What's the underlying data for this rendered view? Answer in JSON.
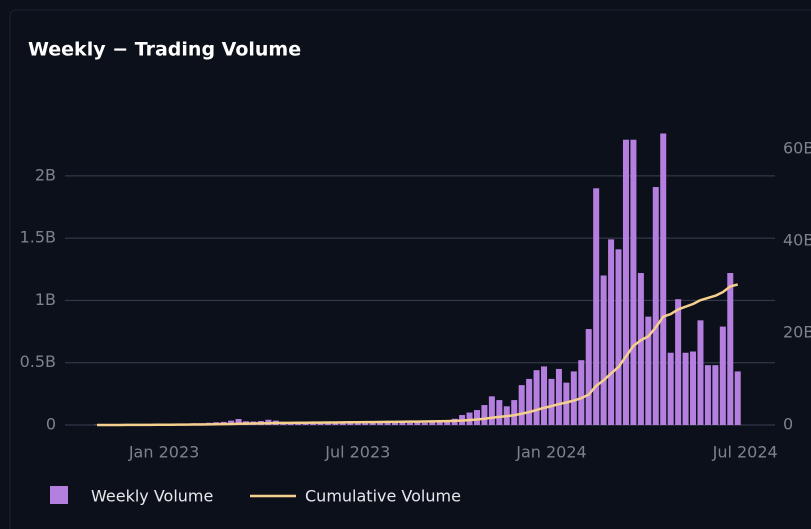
{
  "chart_data": {
    "type": "bar_line",
    "title": "Weekly − Trading Volume",
    "categories": [
      null,
      null,
      null,
      null,
      null,
      null,
      null,
      null,
      null,
      "Jan 2023",
      null,
      null,
      null,
      null,
      null,
      null,
      null,
      null,
      null,
      null,
      null,
      null,
      null,
      null,
      null,
      null,
      null,
      null,
      null,
      null,
      null,
      null,
      null,
      null,
      null,
      "Jul 2023",
      null,
      null,
      null,
      null,
      null,
      null,
      null,
      null,
      null,
      null,
      null,
      null,
      null,
      null,
      null,
      null,
      null,
      null,
      null,
      null,
      null,
      null,
      null,
      null,
      null,
      "Jan 2024",
      null,
      null,
      null,
      null,
      null,
      null,
      null,
      null,
      null,
      null,
      null,
      null,
      null,
      null,
      null,
      null,
      null,
      null,
      null,
      null,
      null,
      null,
      null,
      null,
      null,
      "Jul 2024"
    ],
    "series": [
      {
        "name": "Weekly Volume",
        "color": "#b57fe0",
        "kind": "bar",
        "values": [
          3000000,
          3000000,
          3000000,
          4000000,
          5000000,
          5000000,
          6000000,
          6000000,
          8000000,
          8000000,
          10000000,
          12000000,
          12000000,
          14000000,
          14000000,
          18000000,
          22000000,
          25000000,
          35000000,
          48000000,
          30000000,
          28000000,
          32000000,
          42000000,
          35000000,
          22000000,
          18000000,
          16000000,
          15000000,
          14000000,
          15000000,
          14000000,
          15000000,
          16000000,
          15000000,
          16000000,
          15000000,
          16000000,
          18000000,
          17000000,
          18000000,
          17000000,
          18000000,
          20000000,
          18000000,
          22000000,
          25000000,
          28000000,
          50000000,
          80000000,
          100000000,
          120000000,
          160000000,
          230000000,
          200000000,
          150000000,
          200000000,
          320000000,
          370000000,
          440000000,
          470000000,
          370000000,
          450000000,
          340000000,
          430000000,
          520000000,
          770000000,
          1900000000,
          1200000000,
          1490000000,
          1410000000,
          2290000000,
          2290000000,
          1220000000,
          870000000,
          1910000000,
          2340000000,
          580000000,
          1010000000,
          580000000,
          590000000,
          840000000,
          480000000,
          480000000,
          790000000,
          1220000000,
          430000000,
          null
        ]
      },
      {
        "name": "Cumulative Volume",
        "color": "#f5cf8e",
        "kind": "line",
        "axis": "y2",
        "values": [
          3000000,
          6000000,
          9000000,
          13000000,
          18000000,
          23000000,
          29000000,
          35000000,
          43000000,
          51000000,
          61000000,
          73000000,
          85000000,
          99000000,
          113000000,
          131000000,
          153000000,
          178000000,
          213000000,
          261000000,
          291000000,
          319000000,
          351000000,
          393000000,
          428000000,
          450000000,
          468000000,
          484000000,
          499000000,
          513000000,
          528000000,
          542000000,
          557000000,
          573000000,
          588000000,
          604000000,
          619000000,
          635000000,
          653000000,
          670000000,
          688000000,
          705000000,
          723000000,
          743000000,
          761000000,
          783000000,
          808000000,
          836000000,
          886000000,
          966000000,
          1066000000,
          1186000000,
          1346000000,
          1576000000,
          1776000000,
          1926000000,
          2126000000,
          2446000000,
          2816000000,
          3256000000,
          3726000000,
          4096000000,
          4546000000,
          4886000000,
          5316000000,
          5836000000,
          6606000000,
          8506000000,
          9706000000,
          11196000000,
          12606000000,
          14896000000,
          17186000000,
          18406000000,
          19276000000,
          21186000000,
          23526000000,
          24106000000,
          25116000000,
          25696000000,
          26286000000,
          27126000000,
          27606000000,
          28086000000,
          28876000000,
          30096000000,
          30526000000,
          null
        ]
      }
    ],
    "ylim": [
      0,
      2400000000
    ],
    "yticks": [
      0,
      {
        "value": 500000000,
        "label": "0.5B"
      },
      {
        "value": 1000000000,
        "label": "1B"
      },
      {
        "value": 1500000000,
        "label": "1.5B"
      },
      {
        "value": 2000000000,
        "label": "2B"
      }
    ],
    "y2lim": [
      0,
      64960000000
    ],
    "y2ticks": [
      0,
      {
        "value": 20000000000,
        "label": "20B"
      },
      {
        "value": 40000000000,
        "label": "40B"
      },
      {
        "value": 60000000000,
        "label": "60B"
      }
    ],
    "grid": true
  }
}
